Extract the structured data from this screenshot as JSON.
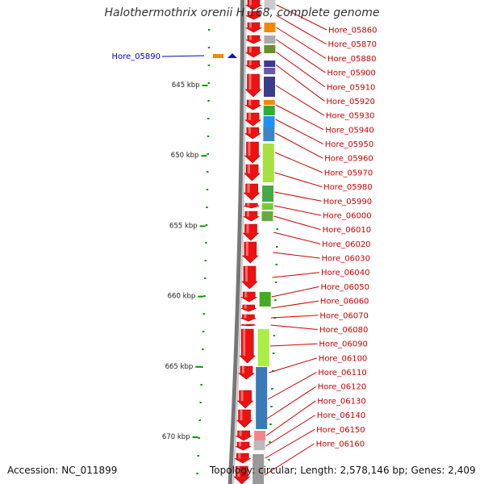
{
  "title": "Halothermothrix orenii H 168, complete genome",
  "accession": "Accession: NC_011899",
  "summary": "Topology: circular; Length: 2,578,146 bp; Genes: 2,409",
  "selected_gene": "Hore_05890",
  "ticks": [
    {
      "label": "645 kbp",
      "kbp": 645
    },
    {
      "label": "650 kbp",
      "kbp": 650
    },
    {
      "label": "655 kbp",
      "kbp": 655
    },
    {
      "label": "660 kbp",
      "kbp": 660
    },
    {
      "label": "665 kbp",
      "kbp": 665
    },
    {
      "label": "670 kbp",
      "kbp": 670
    }
  ],
  "genes": [
    {
      "name": "Hore_05860"
    },
    {
      "name": "Hore_05870"
    },
    {
      "name": "Hore_05880"
    },
    {
      "name": "Hore_05900"
    },
    {
      "name": "Hore_05910"
    },
    {
      "name": "Hore_05920"
    },
    {
      "name": "Hore_05930"
    },
    {
      "name": "Hore_05940"
    },
    {
      "name": "Hore_05950"
    },
    {
      "name": "Hore_05960"
    },
    {
      "name": "Hore_05970"
    },
    {
      "name": "Hore_05980"
    },
    {
      "name": "Hore_05990"
    },
    {
      "name": "Hore_06000"
    },
    {
      "name": "Hore_06010"
    },
    {
      "name": "Hore_06020"
    },
    {
      "name": "Hore_06030"
    },
    {
      "name": "Hore_06040"
    },
    {
      "name": "Hore_06050"
    },
    {
      "name": "Hore_06060"
    },
    {
      "name": "Hore_06070"
    },
    {
      "name": "Hore_06080"
    },
    {
      "name": "Hore_06090"
    },
    {
      "name": "Hore_06100"
    },
    {
      "name": "Hore_06110"
    },
    {
      "name": "Hore_06120"
    },
    {
      "name": "Hore_06130"
    },
    {
      "name": "Hore_06140"
    },
    {
      "name": "Hore_06150"
    },
    {
      "name": "Hore_06160"
    }
  ],
  "colors": {
    "gene_arrow": "#ee1111",
    "label": "#cc0000",
    "selected_label": "#0000cc",
    "tick": "#009900",
    "backbone": "#777777"
  }
}
